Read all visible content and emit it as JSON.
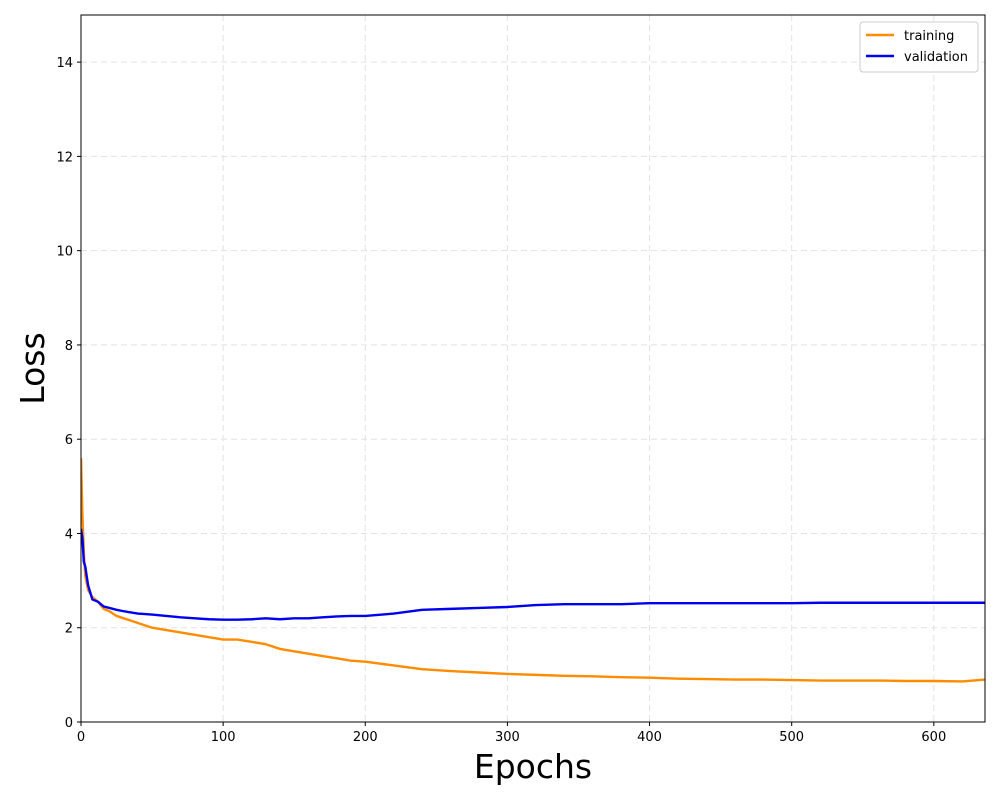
{
  "chart_data": {
    "type": "line",
    "title": "",
    "xlabel": "Epochs",
    "ylabel": "Loss",
    "xlim": [
      0,
      636
    ],
    "ylim": [
      0,
      15
    ],
    "x_ticks": [
      0,
      100,
      200,
      300,
      400,
      500,
      600
    ],
    "y_ticks": [
      0,
      2,
      4,
      6,
      8,
      10,
      12,
      14
    ],
    "grid": true,
    "legend_position": "top-right",
    "series": [
      {
        "name": "training",
        "color": "#ff8c00",
        "x": [
          0,
          1,
          2,
          3,
          5,
          8,
          12,
          16,
          20,
          25,
          30,
          40,
          50,
          60,
          70,
          80,
          90,
          100,
          110,
          120,
          130,
          140,
          150,
          160,
          170,
          180,
          190,
          200,
          220,
          240,
          260,
          280,
          300,
          320,
          340,
          360,
          380,
          400,
          420,
          440,
          460,
          480,
          500,
          520,
          540,
          560,
          580,
          600,
          620,
          636
        ],
        "y": [
          5.6,
          4.4,
          3.6,
          3.1,
          2.8,
          2.65,
          2.55,
          2.4,
          2.35,
          2.25,
          2.2,
          2.1,
          2.0,
          1.95,
          1.9,
          1.85,
          1.8,
          1.75,
          1.75,
          1.7,
          1.65,
          1.55,
          1.5,
          1.45,
          1.4,
          1.35,
          1.3,
          1.28,
          1.2,
          1.12,
          1.08,
          1.05,
          1.02,
          1.0,
          0.98,
          0.97,
          0.95,
          0.94,
          0.92,
          0.91,
          0.9,
          0.9,
          0.89,
          0.88,
          0.88,
          0.88,
          0.87,
          0.87,
          0.86,
          0.9
        ]
      },
      {
        "name": "validation",
        "color": "#0000ee",
        "x": [
          0,
          1,
          2,
          3,
          5,
          8,
          12,
          16,
          20,
          25,
          30,
          40,
          50,
          60,
          70,
          80,
          90,
          100,
          110,
          120,
          130,
          140,
          150,
          160,
          170,
          180,
          190,
          200,
          220,
          240,
          260,
          280,
          300,
          320,
          340,
          360,
          380,
          400,
          420,
          440,
          460,
          480,
          500,
          520,
          540,
          560,
          580,
          600,
          620,
          636
        ],
        "y": [
          4.1,
          3.9,
          3.4,
          3.3,
          2.9,
          2.6,
          2.55,
          2.45,
          2.42,
          2.38,
          2.35,
          2.3,
          2.28,
          2.25,
          2.22,
          2.2,
          2.18,
          2.17,
          2.17,
          2.18,
          2.2,
          2.18,
          2.2,
          2.2,
          2.22,
          2.24,
          2.25,
          2.25,
          2.3,
          2.38,
          2.4,
          2.42,
          2.44,
          2.48,
          2.5,
          2.5,
          2.5,
          2.52,
          2.52,
          2.52,
          2.52,
          2.52,
          2.52,
          2.53,
          2.53,
          2.53,
          2.53,
          2.53,
          2.53,
          2.53
        ]
      }
    ]
  }
}
